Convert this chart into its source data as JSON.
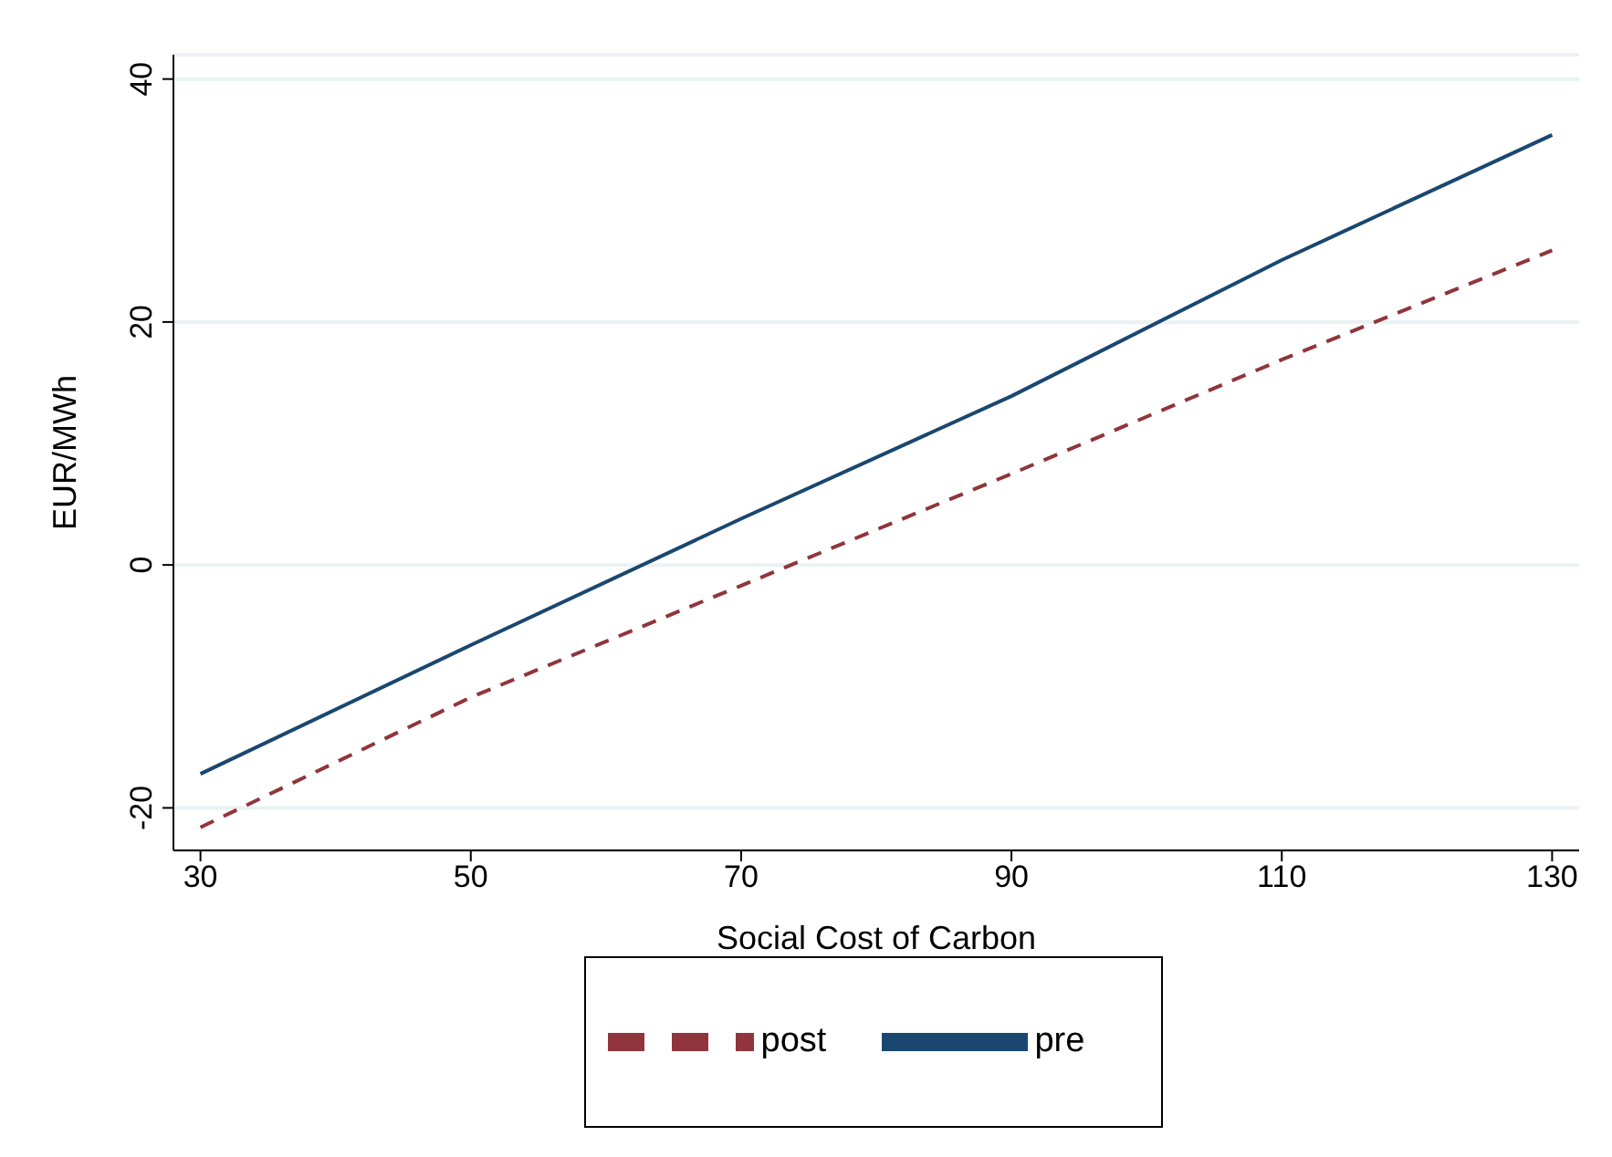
{
  "chart_data": {
    "type": "line",
    "xlabel": "Social Cost of Carbon",
    "ylabel": "EUR/MWh",
    "x": [
      30,
      50,
      70,
      90,
      110,
      130
    ],
    "series": [
      {
        "name": "pre",
        "color": "#1a476f",
        "line_style": "solid",
        "values": [
          -17.2,
          -6.6,
          3.8,
          13.9,
          25.1,
          35.4
        ]
      },
      {
        "name": "post",
        "color": "#90353b",
        "line_style": "dashed",
        "values": [
          -21.6,
          -10.9,
          -1.7,
          7.5,
          16.9,
          25.9
        ]
      }
    ],
    "xlim": [
      28,
      132
    ],
    "xticks": [
      30,
      50,
      70,
      90,
      110,
      130
    ],
    "ylim": [
      -23.5,
      42
    ],
    "yticks": [
      -20,
      0,
      20,
      40
    ],
    "grid": "y",
    "legend": "bottom",
    "marker": "none"
  }
}
